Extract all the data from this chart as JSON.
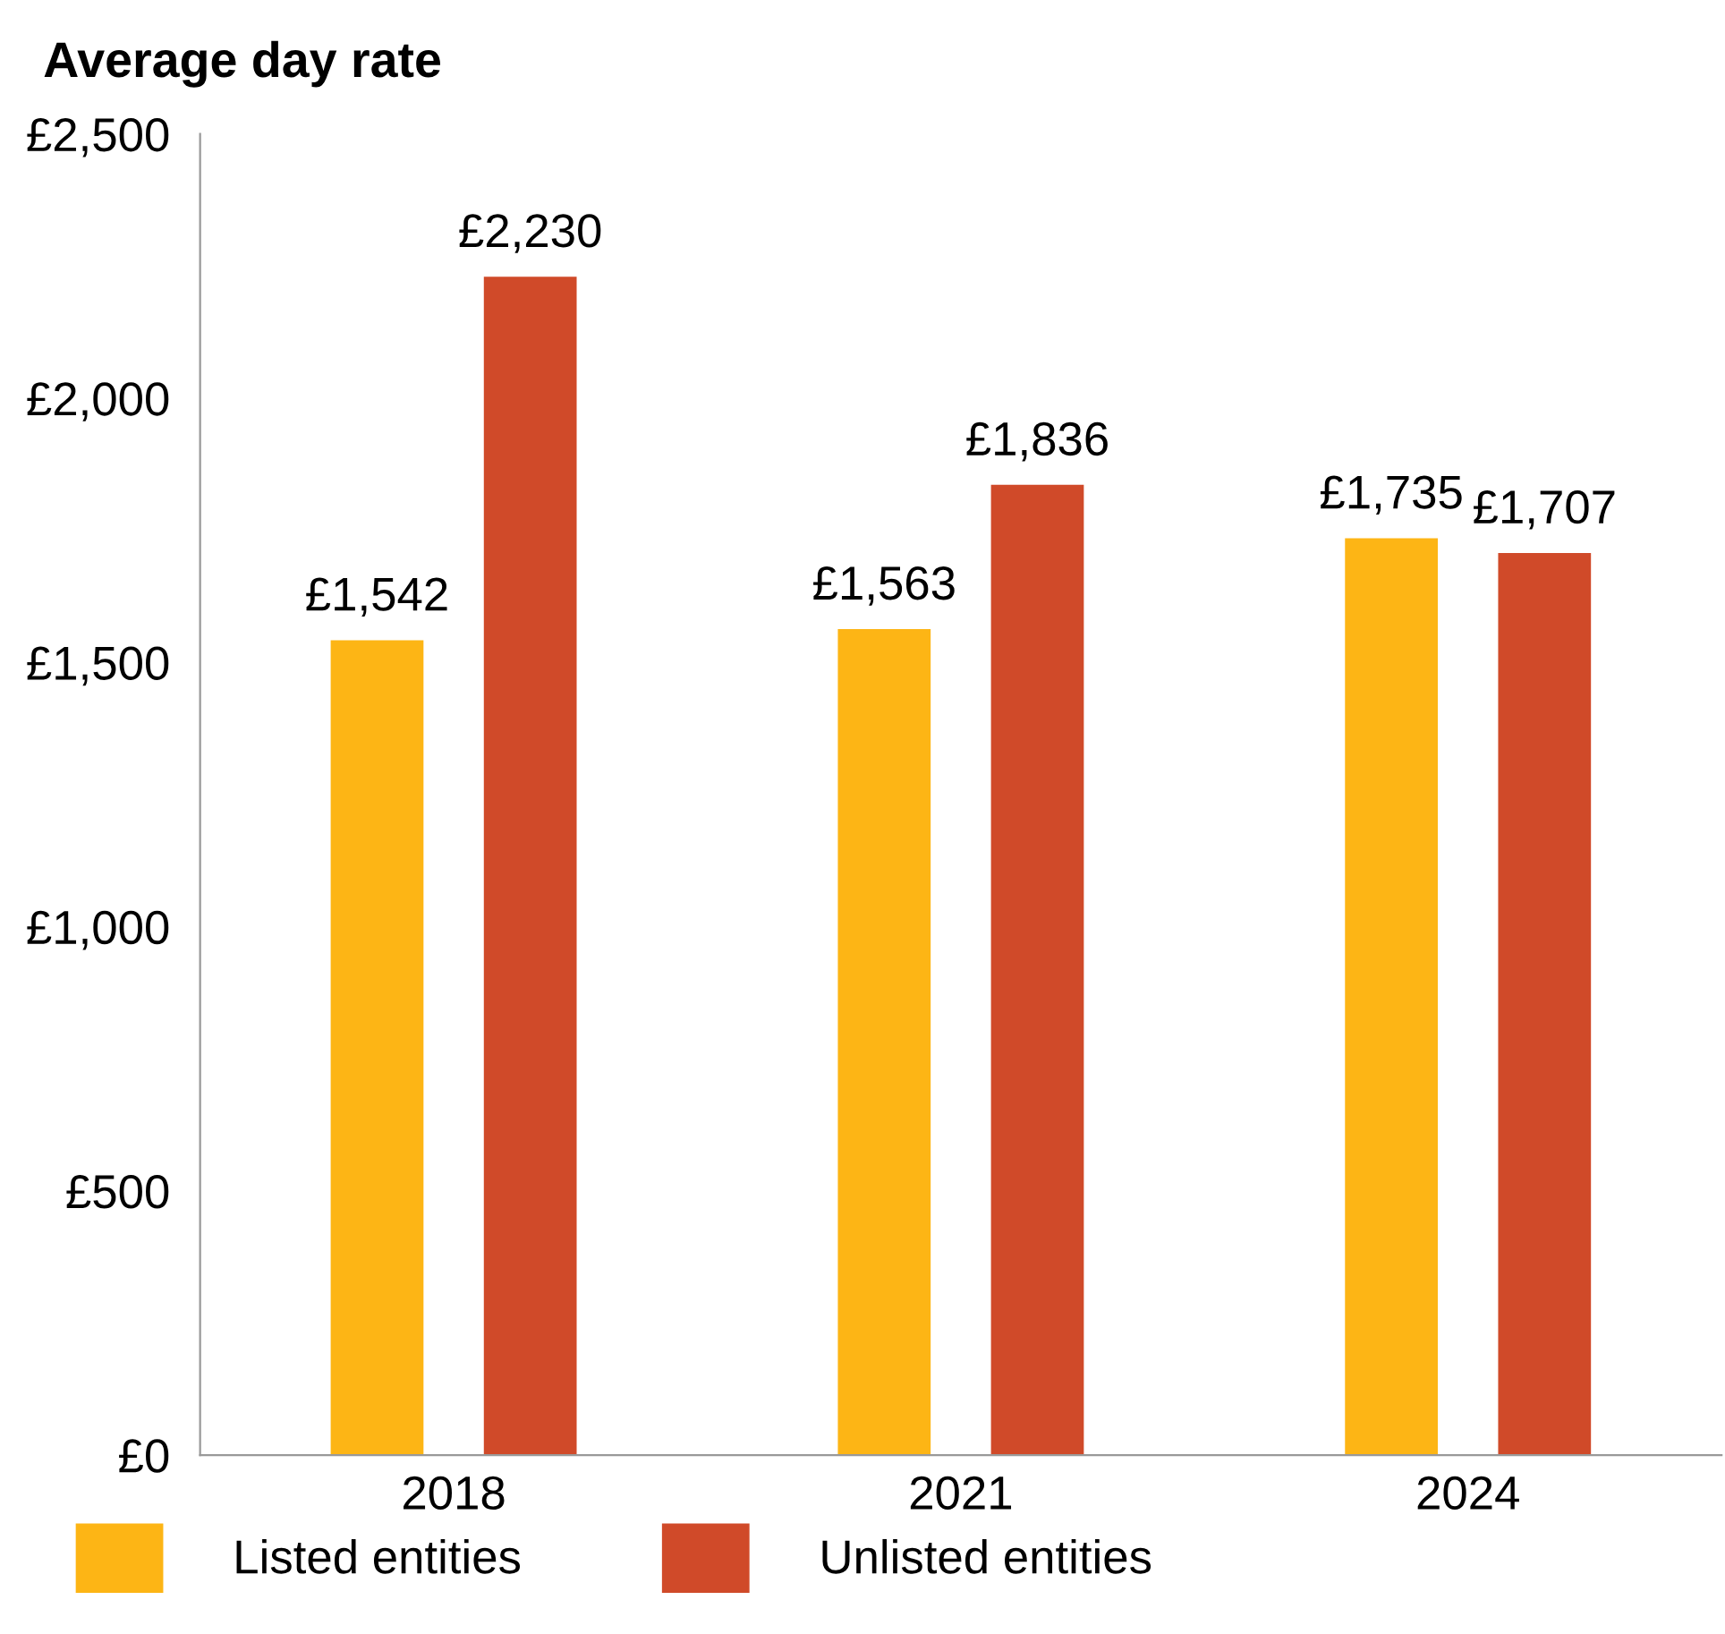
{
  "chart_data": {
    "type": "bar",
    "title": "Average day rate",
    "categories": [
      "2018",
      "2021",
      "2024"
    ],
    "series": [
      {
        "name": "Listed entities",
        "color": "#fdb515",
        "values": [
          1542,
          1563,
          1735
        ],
        "value_labels": [
          "£1,542",
          "£1,563",
          "£1,735"
        ]
      },
      {
        "name": "Unlisted entities",
        "color": "#d04a29",
        "values": [
          2230,
          1836,
          1707
        ],
        "value_labels": [
          "£2,230",
          "£1,836",
          "£1,707"
        ]
      }
    ],
    "ylim": [
      0,
      2500
    ],
    "yticks": [
      {
        "value": 0,
        "label": "£0"
      },
      {
        "value": 500,
        "label": "£500"
      },
      {
        "value": 1000,
        "label": "£1,000"
      },
      {
        "value": 1500,
        "label": "£1,500"
      },
      {
        "value": 2000,
        "label": "£2,000"
      },
      {
        "value": 2500,
        "label": "£2,500"
      }
    ],
    "grid": false,
    "legend": "bottom left"
  }
}
